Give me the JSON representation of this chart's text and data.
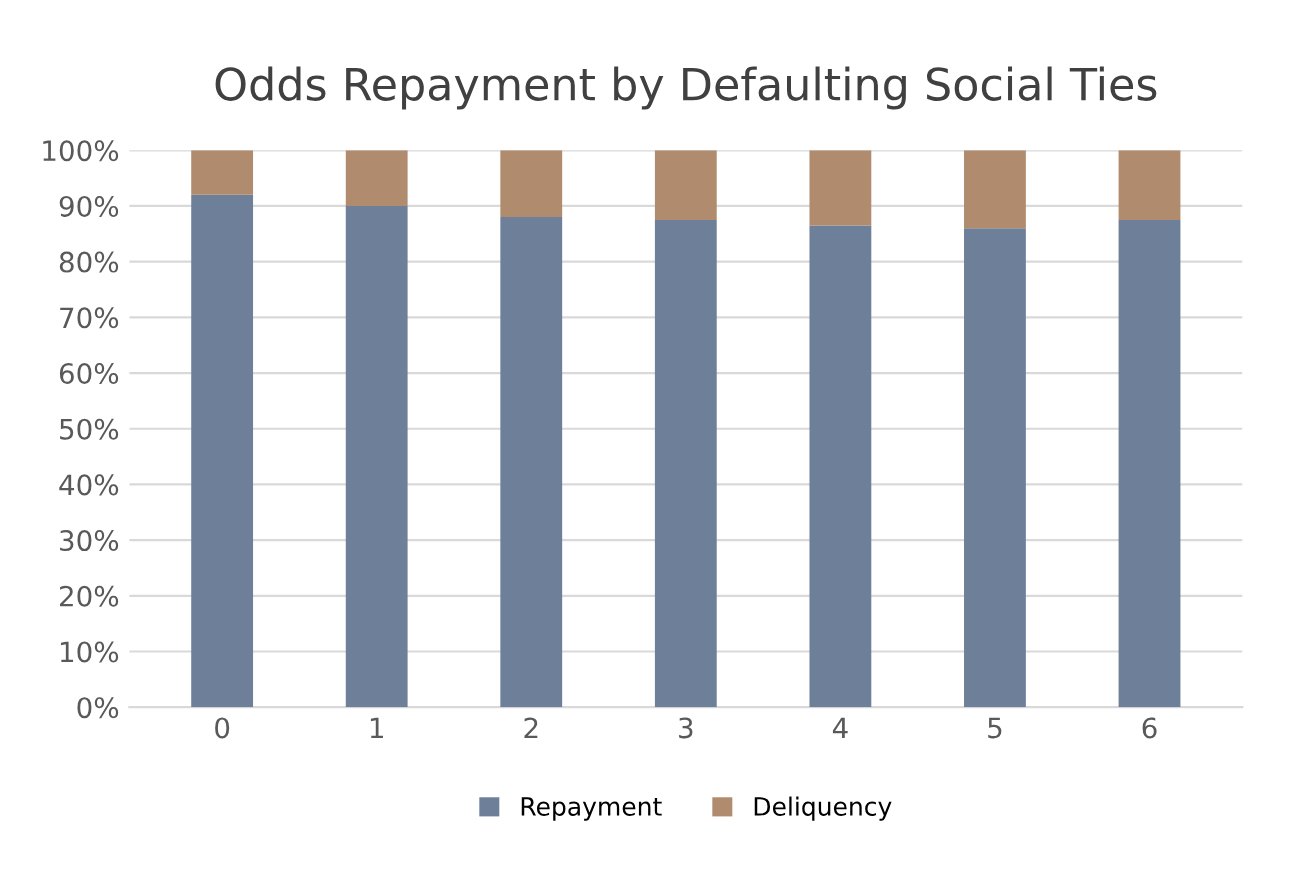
{
  "chart_data": {
    "type": "bar",
    "title": "Odds Repayment by Defaulting Social Ties",
    "stacked": true,
    "categories": [
      "0",
      "1",
      "2",
      "3",
      "4",
      "5",
      "6"
    ],
    "series": [
      {
        "name": "Repayment",
        "color": "#6e7f99",
        "values": [
          92,
          90,
          88,
          87.5,
          86.5,
          86,
          87.5
        ]
      },
      {
        "name": "Deliquency",
        "color": "#b08b6e",
        "values": [
          8,
          10,
          12,
          12.5,
          13.5,
          14,
          12.5
        ]
      }
    ],
    "ylim": [
      0,
      100
    ],
    "yticks": [
      {
        "value": 0,
        "label": "0%"
      },
      {
        "value": 10,
        "label": "10%"
      },
      {
        "value": 20,
        "label": "20%"
      },
      {
        "value": 30,
        "label": "30%"
      },
      {
        "value": 40,
        "label": "40%"
      },
      {
        "value": 50,
        "label": "50%"
      },
      {
        "value": 60,
        "label": "60%"
      },
      {
        "value": 70,
        "label": "70%"
      },
      {
        "value": 80,
        "label": "80%"
      },
      {
        "value": 90,
        "label": "90%"
      },
      {
        "value": 100,
        "label": "100%"
      }
    ],
    "grid": "y",
    "legend": "bottom"
  }
}
